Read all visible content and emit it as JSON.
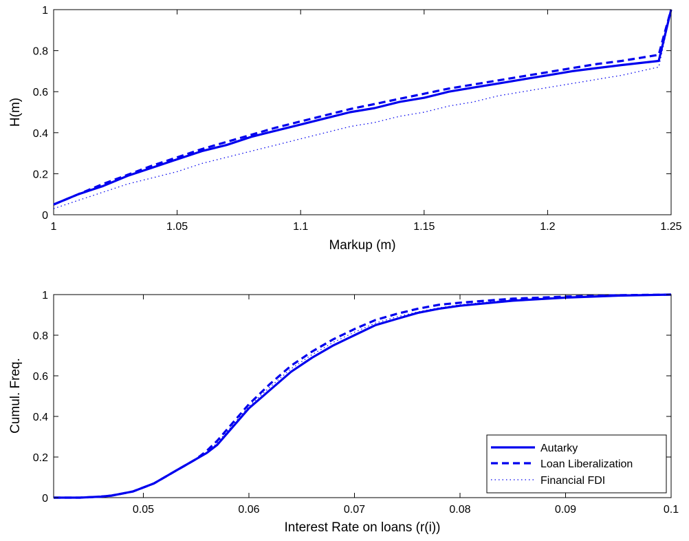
{
  "chart_data": [
    {
      "type": "line",
      "title": "",
      "xlabel": "Markup (m)",
      "ylabel": "H(m)",
      "xlim": [
        1,
        1.25
      ],
      "ylim": [
        0,
        1
      ],
      "xticks": [
        1,
        1.05,
        1.1,
        1.15,
        1.2,
        1.25
      ],
      "xtick_labels": [
        "1",
        "1.05",
        "1.1",
        "1.15",
        "1.2",
        "1.25"
      ],
      "yticks": [
        0,
        0.2,
        0.4,
        0.6,
        0.8,
        1
      ],
      "ytick_labels": [
        "0",
        "0.2",
        "0.4",
        "0.6",
        "0.8",
        "1"
      ],
      "grid": false,
      "color": "#0000ee",
      "series": [
        {
          "style": "solid",
          "x": [
            1.0,
            1.01,
            1.02,
            1.03,
            1.04,
            1.05,
            1.06,
            1.07,
            1.08,
            1.09,
            1.1,
            1.11,
            1.12,
            1.13,
            1.14,
            1.15,
            1.16,
            1.17,
            1.18,
            1.19,
            1.2,
            1.21,
            1.22,
            1.23,
            1.245,
            1.247,
            1.25
          ],
          "y": [
            0.05,
            0.1,
            0.14,
            0.19,
            0.23,
            0.27,
            0.31,
            0.34,
            0.38,
            0.41,
            0.44,
            0.47,
            0.5,
            0.52,
            0.55,
            0.57,
            0.6,
            0.62,
            0.64,
            0.66,
            0.68,
            0.7,
            0.715,
            0.73,
            0.75,
            0.85,
            1.0
          ]
        },
        {
          "style": "dashed",
          "x": [
            1.0,
            1.01,
            1.02,
            1.03,
            1.04,
            1.05,
            1.06,
            1.07,
            1.08,
            1.09,
            1.1,
            1.11,
            1.12,
            1.13,
            1.14,
            1.15,
            1.16,
            1.17,
            1.18,
            1.19,
            1.2,
            1.21,
            1.22,
            1.23,
            1.245,
            1.247,
            1.25
          ],
          "y": [
            0.05,
            0.1,
            0.15,
            0.195,
            0.24,
            0.28,
            0.32,
            0.355,
            0.39,
            0.425,
            0.455,
            0.485,
            0.515,
            0.54,
            0.565,
            0.59,
            0.615,
            0.635,
            0.655,
            0.675,
            0.695,
            0.715,
            0.735,
            0.75,
            0.78,
            0.87,
            1.0
          ]
        },
        {
          "style": "dotted",
          "x": [
            1.0,
            1.01,
            1.02,
            1.03,
            1.04,
            1.05,
            1.06,
            1.07,
            1.08,
            1.09,
            1.1,
            1.11,
            1.12,
            1.13,
            1.14,
            1.15,
            1.16,
            1.17,
            1.18,
            1.19,
            1.2,
            1.21,
            1.22,
            1.23,
            1.245,
            1.247,
            1.25
          ],
          "y": [
            0.03,
            0.07,
            0.11,
            0.15,
            0.18,
            0.21,
            0.25,
            0.28,
            0.31,
            0.34,
            0.37,
            0.4,
            0.43,
            0.45,
            0.48,
            0.5,
            0.53,
            0.55,
            0.58,
            0.6,
            0.62,
            0.64,
            0.66,
            0.68,
            0.72,
            0.83,
            1.0
          ]
        }
      ]
    },
    {
      "type": "line",
      "title": "",
      "xlabel": "Interest Rate on loans (r(i))",
      "ylabel": "Cumul. Freq.",
      "xlim": [
        0.0415,
        0.1
      ],
      "ylim": [
        0,
        1
      ],
      "xticks": [
        0.05,
        0.06,
        0.07,
        0.08,
        0.09,
        0.1
      ],
      "xtick_labels": [
        "0.05",
        "0.06",
        "0.07",
        "0.08",
        "0.09",
        "0.1"
      ],
      "yticks": [
        0,
        0.2,
        0.4,
        0.6,
        0.8,
        1
      ],
      "ytick_labels": [
        "0",
        "0.2",
        "0.4",
        "0.6",
        "0.8",
        "1"
      ],
      "grid": false,
      "legend_position": "bottom-right",
      "color": "#0000ee",
      "series": [
        {
          "name": "Autarky",
          "style": "solid",
          "x": [
            0.0415,
            0.044,
            0.046,
            0.047,
            0.048,
            0.049,
            0.05,
            0.051,
            0.052,
            0.053,
            0.054,
            0.055,
            0.056,
            0.057,
            0.058,
            0.059,
            0.06,
            0.062,
            0.064,
            0.066,
            0.068,
            0.07,
            0.072,
            0.074,
            0.076,
            0.078,
            0.08,
            0.085,
            0.09,
            0.095,
            0.1
          ],
          "y": [
            0.0,
            0.0,
            0.005,
            0.01,
            0.02,
            0.03,
            0.05,
            0.07,
            0.1,
            0.13,
            0.16,
            0.19,
            0.22,
            0.26,
            0.32,
            0.38,
            0.44,
            0.53,
            0.62,
            0.69,
            0.75,
            0.8,
            0.85,
            0.88,
            0.91,
            0.93,
            0.945,
            0.97,
            0.985,
            0.995,
            1.0
          ]
        },
        {
          "name": "Loan Liberalization",
          "style": "dashed",
          "x": [
            0.0415,
            0.044,
            0.046,
            0.047,
            0.048,
            0.049,
            0.05,
            0.051,
            0.052,
            0.053,
            0.054,
            0.055,
            0.056,
            0.057,
            0.058,
            0.059,
            0.06,
            0.062,
            0.064,
            0.066,
            0.068,
            0.07,
            0.072,
            0.074,
            0.076,
            0.078,
            0.08,
            0.085,
            0.09,
            0.095,
            0.1
          ],
          "y": [
            0.0,
            0.0,
            0.005,
            0.01,
            0.02,
            0.03,
            0.05,
            0.07,
            0.1,
            0.13,
            0.16,
            0.19,
            0.23,
            0.28,
            0.34,
            0.4,
            0.46,
            0.56,
            0.65,
            0.72,
            0.78,
            0.83,
            0.875,
            0.905,
            0.93,
            0.95,
            0.96,
            0.98,
            0.99,
            0.997,
            1.0
          ]
        },
        {
          "name": "Financial FDI",
          "style": "dotted",
          "x": [
            0.0415,
            0.044,
            0.046,
            0.047,
            0.048,
            0.049,
            0.05,
            0.051,
            0.052,
            0.053,
            0.054,
            0.055,
            0.056,
            0.057,
            0.058,
            0.059,
            0.06,
            0.062,
            0.064,
            0.066,
            0.068,
            0.07,
            0.072,
            0.074,
            0.076,
            0.078,
            0.08,
            0.085,
            0.09,
            0.095,
            0.1
          ],
          "y": [
            0.0,
            0.0,
            0.005,
            0.01,
            0.02,
            0.03,
            0.05,
            0.07,
            0.1,
            0.13,
            0.16,
            0.19,
            0.22,
            0.27,
            0.33,
            0.39,
            0.45,
            0.545,
            0.635,
            0.705,
            0.765,
            0.815,
            0.86,
            0.89,
            0.915,
            0.935,
            0.95,
            0.975,
            0.988,
            0.996,
            1.0
          ]
        }
      ]
    }
  ]
}
